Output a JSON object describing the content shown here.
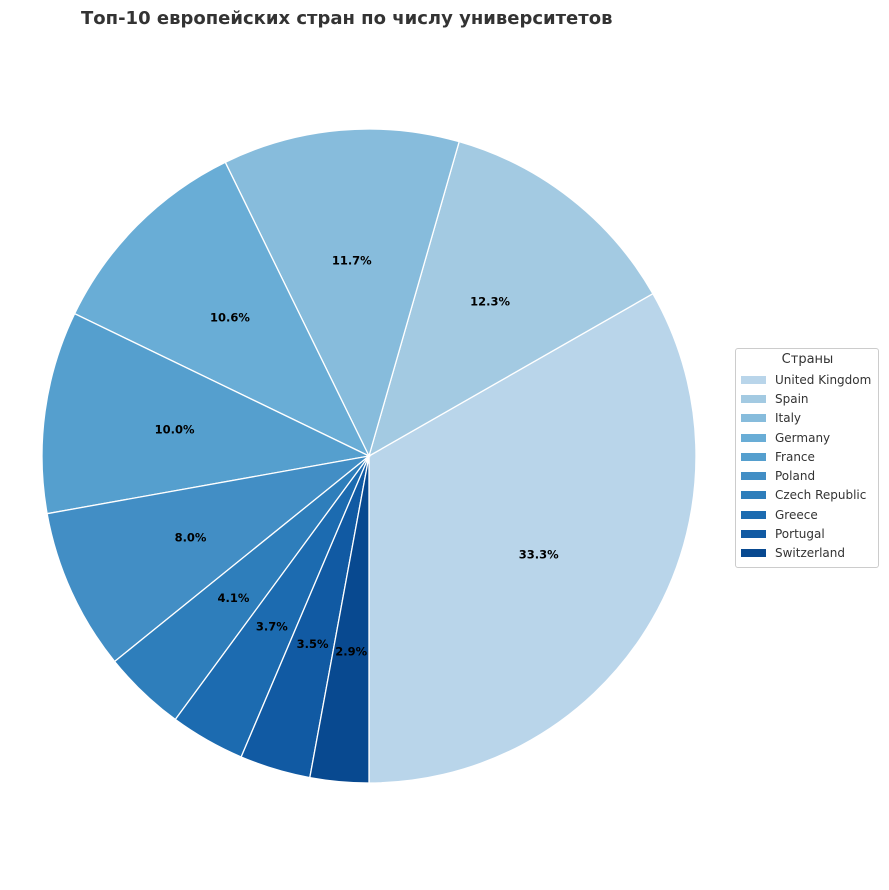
{
  "chart_data": {
    "type": "pie",
    "title": "Топ-10 европейских стран по числу университетов",
    "legend_title": "Страны",
    "legend_position": "right",
    "start_angle_deg": 270,
    "direction": "counterclockwise",
    "categories": [
      "United Kingdom",
      "Spain",
      "Italy",
      "Germany",
      "France",
      "Poland",
      "Czech Republic",
      "Greece",
      "Portugal",
      "Switzerland"
    ],
    "values": [
      33.3,
      12.3,
      11.7,
      10.6,
      10.0,
      8.0,
      4.1,
      3.7,
      3.5,
      2.9
    ],
    "labels": [
      "33.3%",
      "12.3%",
      "11.7%",
      "10.6%",
      "10.0%",
      "8.0%",
      "4.1%",
      "3.7%",
      "3.5%",
      "2.9%"
    ],
    "colors": [
      "#b9d5ea",
      "#a3cae2",
      "#87bcdc",
      "#69add6",
      "#559fce",
      "#428ec5",
      "#2e7ebb",
      "#1c6bb0",
      "#115aa3",
      "#084990"
    ]
  }
}
